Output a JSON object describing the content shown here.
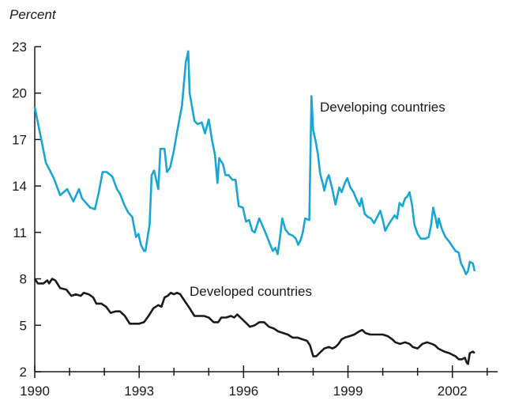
{
  "chart_data": {
    "type": "line",
    "y_label": "Percent",
    "xlim": [
      1990,
      2003.3
    ],
    "xticks": [
      1990,
      1993,
      1996,
      1999,
      2002
    ],
    "xticks_minor": [
      1991,
      1992,
      1994,
      1995,
      1997,
      1998,
      2000,
      2001,
      2003
    ],
    "ylim": [
      2,
      23
    ],
    "yticks": [
      2,
      5,
      8,
      11,
      14,
      17,
      20,
      23
    ],
    "series": [
      {
        "name": "Developing countries",
        "color": "#1aa6d0",
        "x": [
          1990.0,
          1990.32,
          1990.55,
          1990.73,
          1990.93,
          1991.11,
          1991.27,
          1991.36,
          1991.59,
          1991.73,
          1991.84,
          1991.95,
          1992.07,
          1992.23,
          1992.36,
          1992.45,
          1992.57,
          1992.68,
          1992.8,
          1992.91,
          1992.98,
          1993.05,
          1993.14,
          1993.18,
          1993.3,
          1993.36,
          1993.43,
          1993.55,
          1993.61,
          1993.73,
          1993.8,
          1993.89,
          1994.0,
          1994.09,
          1994.23,
          1994.3,
          1994.34,
          1994.41,
          1994.45,
          1994.59,
          1994.68,
          1994.8,
          1994.89,
          1995.0,
          1995.09,
          1995.18,
          1995.25,
          1995.3,
          1995.41,
          1995.48,
          1995.57,
          1995.68,
          1995.77,
          1995.86,
          1995.98,
          1996.07,
          1996.16,
          1996.25,
          1996.32,
          1996.45,
          1996.57,
          1996.68,
          1996.75,
          1996.84,
          1996.91,
          1996.98,
          1997.05,
          1997.11,
          1997.2,
          1997.3,
          1997.41,
          1997.5,
          1997.57,
          1997.64,
          1997.7,
          1997.77,
          1997.89,
          1997.95,
          1998.0,
          1998.07,
          1998.14,
          1998.2,
          1998.27,
          1998.32,
          1998.39,
          1998.45,
          1998.55,
          1998.64,
          1998.75,
          1998.82,
          1998.91,
          1998.98,
          1999.07,
          1999.16,
          1999.25,
          1999.34,
          1999.39,
          1999.48,
          1999.57,
          1999.66,
          1999.75,
          1999.84,
          1999.93,
          2000.0,
          2000.07,
          2000.16,
          2000.25,
          2000.34,
          2000.41,
          2000.48,
          2000.57,
          2000.64,
          2000.7,
          2000.77,
          2000.84,
          2000.91,
          2001.0,
          2001.09,
          2001.23,
          2001.32,
          2001.39,
          2001.45,
          2001.52,
          2001.57,
          2001.61,
          2001.7,
          2001.8,
          2001.91,
          2002.0,
          2002.09,
          2002.18,
          2002.25,
          2002.32,
          2002.39,
          2002.45,
          2002.5,
          2002.59,
          2002.64
        ],
        "values": [
          19.1,
          15.5,
          14.5,
          13.4,
          13.8,
          13.0,
          13.8,
          13.2,
          12.6,
          12.5,
          13.6,
          14.9,
          14.9,
          14.6,
          13.8,
          13.5,
          12.8,
          12.3,
          12.0,
          10.7,
          10.9,
          10.2,
          9.8,
          9.8,
          11.5,
          14.7,
          15.0,
          13.8,
          16.4,
          16.4,
          14.9,
          15.2,
          16.3,
          17.5,
          19.2,
          21.0,
          22.0,
          22.7,
          20.0,
          18.2,
          18.0,
          18.1,
          17.4,
          18.3,
          17.0,
          16.0,
          14.2,
          15.8,
          15.4,
          14.7,
          14.7,
          14.4,
          14.4,
          12.7,
          12.6,
          11.7,
          11.8,
          11.1,
          11.0,
          11.9,
          11.3,
          10.7,
          10.3,
          9.8,
          10.0,
          9.6,
          10.7,
          11.9,
          11.2,
          10.9,
          10.8,
          10.6,
          10.2,
          10.5,
          11.0,
          11.9,
          11.8,
          19.8,
          17.6,
          16.9,
          16.0,
          14.8,
          14.2,
          13.7,
          14.4,
          14.7,
          13.8,
          12.8,
          13.9,
          13.6,
          14.2,
          14.5,
          13.9,
          13.6,
          13.1,
          12.7,
          13.2,
          12.2,
          12.0,
          11.9,
          11.6,
          12.0,
          12.4,
          11.8,
          11.1,
          11.5,
          11.8,
          12.1,
          11.9,
          12.9,
          12.7,
          13.2,
          13.3,
          13.6,
          12.8,
          11.5,
          10.9,
          10.6,
          10.6,
          10.7,
          11.5,
          12.6,
          11.9,
          11.3,
          11.9,
          11.2,
          10.7,
          10.4,
          10.1,
          9.8,
          9.7,
          9.0,
          8.7,
          8.3,
          8.5,
          9.1,
          9.0,
          8.5
        ]
      },
      {
        "name": "Developed countries",
        "color": "#1a1a1a",
        "x": [
          1990.0,
          1990.09,
          1990.25,
          1990.36,
          1990.41,
          1990.5,
          1990.59,
          1990.73,
          1990.91,
          1991.05,
          1991.18,
          1991.32,
          1991.41,
          1991.55,
          1991.68,
          1991.77,
          1991.91,
          1992.05,
          1992.18,
          1992.32,
          1992.45,
          1992.59,
          1992.73,
          1992.86,
          1993.0,
          1993.14,
          1993.27,
          1993.41,
          1993.55,
          1993.64,
          1993.73,
          1993.82,
          1993.91,
          1994.0,
          1994.09,
          1994.18,
          1994.27,
          1994.36,
          1994.45,
          1994.59,
          1994.73,
          1994.86,
          1995.0,
          1995.14,
          1995.27,
          1995.36,
          1995.5,
          1995.64,
          1995.73,
          1995.82,
          1995.91,
          1996.05,
          1996.18,
          1996.32,
          1996.45,
          1996.59,
          1996.73,
          1996.86,
          1997.0,
          1997.14,
          1997.27,
          1997.41,
          1997.55,
          1997.68,
          1997.82,
          1997.91,
          1998.0,
          1998.09,
          1998.18,
          1998.32,
          1998.45,
          1998.55,
          1998.64,
          1998.73,
          1998.82,
          1998.91,
          1999.05,
          1999.18,
          1999.32,
          1999.41,
          1999.5,
          1999.64,
          1999.82,
          2000.0,
          2000.14,
          2000.27,
          2000.36,
          2000.5,
          2000.64,
          2000.77,
          2000.86,
          2001.0,
          2001.14,
          2001.27,
          2001.41,
          2001.5,
          2001.59,
          2001.68,
          2001.77,
          2001.91,
          2002.0,
          2002.09,
          2002.18,
          2002.27,
          2002.36,
          2002.41,
          2002.45,
          2002.5,
          2002.59,
          2002.64
        ],
        "values": [
          8.0,
          7.7,
          7.7,
          7.9,
          7.7,
          8.0,
          7.9,
          7.4,
          7.3,
          6.9,
          7.0,
          6.9,
          7.1,
          7.0,
          6.8,
          6.4,
          6.4,
          6.2,
          5.8,
          5.9,
          5.9,
          5.6,
          5.1,
          5.1,
          5.1,
          5.2,
          5.6,
          6.1,
          6.3,
          6.2,
          6.8,
          6.9,
          7.1,
          7.0,
          7.1,
          7.0,
          6.7,
          6.4,
          6.1,
          5.6,
          5.6,
          5.6,
          5.5,
          5.2,
          5.2,
          5.5,
          5.5,
          5.6,
          5.5,
          5.7,
          5.5,
          5.2,
          4.9,
          5.0,
          5.2,
          5.2,
          4.9,
          4.8,
          4.6,
          4.5,
          4.4,
          4.2,
          4.2,
          4.1,
          4.0,
          3.7,
          3.0,
          3.0,
          3.2,
          3.5,
          3.6,
          3.5,
          3.6,
          3.8,
          4.1,
          4.2,
          4.3,
          4.4,
          4.6,
          4.7,
          4.5,
          4.4,
          4.4,
          4.4,
          4.3,
          4.1,
          3.9,
          3.8,
          3.9,
          3.8,
          3.6,
          3.5,
          3.8,
          3.9,
          3.8,
          3.7,
          3.5,
          3.4,
          3.3,
          3.2,
          3.1,
          3.0,
          2.8,
          2.8,
          2.9,
          2.6,
          2.5,
          3.2,
          3.3,
          3.2
        ]
      }
    ]
  }
}
